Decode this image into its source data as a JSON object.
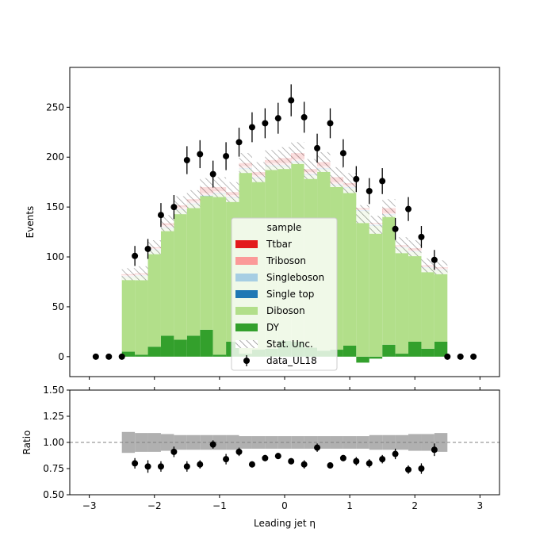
{
  "chart_data": {
    "type": "histogram-stack",
    "xlabel": "Leading jet  η",
    "main": {
      "ylabel": "Events",
      "xlim": [
        -3.3,
        3.3
      ],
      "ylim": [
        -20,
        290
      ],
      "yticks": [
        0,
        50,
        100,
        150,
        200,
        250
      ],
      "xticks": [
        -3,
        -2,
        -1,
        0,
        1,
        2,
        3
      ],
      "bin_edges": [
        -2.5,
        -2.3,
        -2.1,
        -1.9,
        -1.7,
        -1.5,
        -1.3,
        -1.1,
        -0.9,
        -0.7,
        -0.5,
        -0.3,
        -0.1,
        0.1,
        0.3,
        0.5,
        0.7,
        0.9,
        1.1,
        1.3,
        1.5,
        1.7,
        1.9,
        2.1,
        2.3,
        2.5
      ],
      "series": [
        {
          "name": "DY",
          "color": "#33a02c",
          "values": [
            5,
            2,
            10,
            21,
            17,
            21,
            27,
            2,
            15,
            3,
            7,
            8,
            16,
            15,
            9,
            6,
            7,
            11,
            -6,
            -2,
            12,
            3,
            15,
            8,
            15
          ]
        },
        {
          "name": "Diboson",
          "color": "#b2df8a",
          "values": [
            75,
            79,
            97,
            108,
            130,
            132,
            134,
            161,
            144,
            185,
            172,
            183,
            175,
            180,
            173,
            182,
            165,
            158,
            146,
            131,
            130,
            106,
            90,
            81,
            72
          ]
        },
        {
          "name": "Single top",
          "color": "#1f78b4",
          "values": [
            0.4,
            0.3,
            0.4,
            0.5,
            0.5,
            0.5,
            0.6,
            0.6,
            0.6,
            0.7,
            0.6,
            0.7,
            0.7,
            0.7,
            0.7,
            0.7,
            0.6,
            0.6,
            0.5,
            0.5,
            0.5,
            0.4,
            0.4,
            0.3,
            0.3
          ]
        },
        {
          "name": "Singleboson",
          "color": "#a6cee3",
          "values": [
            0.3,
            0.3,
            0.3,
            0.3,
            0.3,
            0.4,
            0.4,
            0.4,
            0.4,
            0.4,
            0.4,
            0.4,
            0.4,
            0.4,
            0.4,
            0.4,
            0.4,
            0.4,
            0.4,
            1.2,
            0.4,
            0.3,
            0.3,
            0.3,
            0.3
          ]
        },
        {
          "name": "Triboson",
          "color": "#fb9a99",
          "values": [
            1,
            1,
            1,
            2,
            2,
            2,
            2,
            2,
            2,
            2,
            2,
            2,
            2,
            2,
            2,
            2,
            2,
            2,
            1,
            1,
            1,
            1,
            1,
            1,
            1
          ]
        },
        {
          "name": "Ttbar",
          "color": "#e31a1c",
          "values": [
            1,
            1,
            1,
            2,
            2,
            2,
            6,
            4,
            3,
            3,
            3,
            3,
            5,
            6,
            3,
            4,
            5,
            2,
            1,
            0.5,
            5,
            1,
            2,
            1,
            1
          ]
        }
      ],
      "stat_unc": [
        6,
        7,
        7,
        8,
        9,
        9,
        9,
        10,
        10,
        10,
        10,
        10,
        11,
        11,
        10,
        10,
        10,
        10,
        9,
        9,
        9,
        8,
        8,
        7,
        7
      ],
      "data": {
        "name": "data_UL18",
        "x": [
          -2.9,
          -2.7,
          -2.5,
          -2.3,
          -2.1,
          -1.9,
          -1.7,
          -1.5,
          -1.3,
          -1.1,
          -0.9,
          -0.7,
          -0.5,
          -0.3,
          -0.1,
          0.1,
          0.3,
          0.5,
          0.7,
          0.9,
          1.1,
          1.3,
          1.5,
          1.7,
          1.9,
          2.1,
          2.3,
          2.5,
          2.7,
          2.9
        ],
        "y": [
          0,
          0,
          0,
          101,
          108,
          142,
          150,
          197,
          203,
          183,
          201,
          215,
          230,
          234,
          239,
          257,
          240,
          209,
          234,
          204,
          178,
          166,
          176,
          128,
          148,
          120,
          97,
          0,
          0,
          0
        ],
        "yerr": [
          0,
          0,
          0,
          10,
          10,
          12,
          12,
          14,
          14,
          13.5,
          14,
          14.5,
          15,
          15,
          15.5,
          16,
          15.5,
          14.5,
          15,
          14,
          13,
          13,
          13,
          11,
          12,
          11,
          10,
          0,
          0,
          0
        ]
      },
      "legend": {
        "title": "sample",
        "placement": "lower-center",
        "entries": [
          "Ttbar",
          "Triboson",
          "Singleboson",
          "Single top",
          "Diboson",
          "DY",
          "Stat. Unc.",
          "data_UL18"
        ]
      }
    },
    "ratio": {
      "ylabel": "Ratio",
      "ylim": [
        0.5,
        1.5
      ],
      "yticks": [
        "0.50",
        "0.75",
        "1.00",
        "1.25",
        "1.50"
      ],
      "reference_line": 1.0,
      "band_halfwidth": [
        0.1,
        0.09,
        0.09,
        0.08,
        0.07,
        0.07,
        0.07,
        0.07,
        0.07,
        0.06,
        0.06,
        0.06,
        0.06,
        0.06,
        0.06,
        0.06,
        0.06,
        0.06,
        0.06,
        0.07,
        0.07,
        0.07,
        0.08,
        0.08,
        0.09
      ],
      "x": [
        -2.3,
        -2.1,
        -1.9,
        -1.7,
        -1.5,
        -1.3,
        -1.1,
        -0.9,
        -0.7,
        -0.5,
        -0.3,
        -0.1,
        0.1,
        0.3,
        0.5,
        0.7,
        0.9,
        1.1,
        1.3,
        1.5,
        1.7,
        1.9,
        2.1,
        2.3
      ],
      "y": [
        0.8,
        0.77,
        0.77,
        0.91,
        0.77,
        0.79,
        0.98,
        0.84,
        0.91,
        0.79,
        0.85,
        0.87,
        0.82,
        0.79,
        0.95,
        0.78,
        0.85,
        0.82,
        0.8,
        0.84,
        0.89,
        0.74,
        0.75,
        0.93
      ],
      "yerr": [
        0.05,
        0.06,
        0.05,
        0.05,
        0.05,
        0.04,
        0.04,
        0.05,
        0.04,
        0.03,
        0.03,
        0.03,
        0.03,
        0.04,
        0.04,
        0.03,
        0.03,
        0.04,
        0.04,
        0.04,
        0.05,
        0.04,
        0.05,
        0.06
      ]
    }
  }
}
